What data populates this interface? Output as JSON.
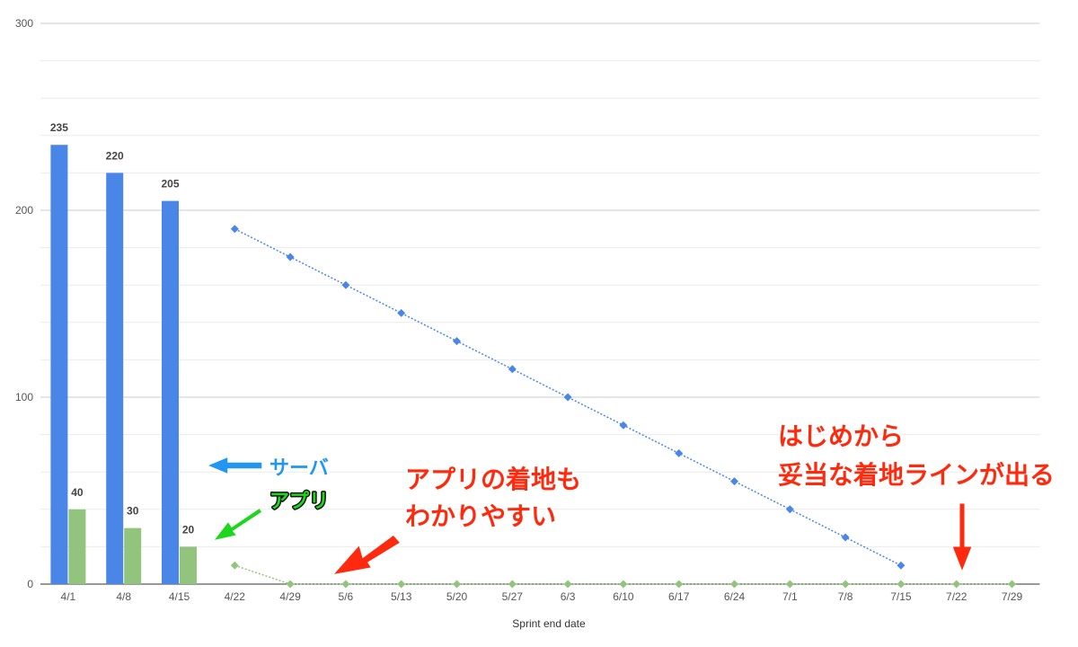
{
  "chart_data": {
    "type": "bar",
    "categories": [
      "4/1",
      "4/8",
      "4/15",
      "4/22",
      "4/29",
      "5/6",
      "5/13",
      "5/20",
      "5/27",
      "6/3",
      "6/10",
      "6/17",
      "6/24",
      "7/1",
      "7/8",
      "7/15",
      "7/22",
      "7/29"
    ],
    "xlabel": "Sprint end date",
    "ylabel": "",
    "ylim": [
      0,
      300
    ],
    "yticks": [
      0,
      100,
      200,
      300
    ],
    "grid": true,
    "bar_series": [
      {
        "values": [
          235,
          220,
          205,
          null,
          null,
          null,
          null,
          null,
          null,
          null,
          null,
          null,
          null,
          null,
          null,
          null,
          null,
          null
        ],
        "color": "#4a86e8"
      },
      {
        "values": [
          40,
          30,
          20,
          null,
          null,
          null,
          null,
          null,
          null,
          null,
          null,
          null,
          null,
          null,
          null,
          null,
          null,
          null
        ],
        "color": "#93c47d"
      }
    ],
    "line_series": [
      {
        "values": [
          null,
          null,
          null,
          190,
          175,
          160,
          145,
          130,
          115,
          100,
          85,
          70,
          55,
          40,
          25,
          10,
          null,
          null
        ],
        "color": "#4a86e8",
        "style": "dotted",
        "marker": "diamond"
      },
      {
        "values": [
          null,
          null,
          null,
          10,
          0,
          0,
          0,
          0,
          0,
          0,
          0,
          0,
          0,
          0,
          0,
          0,
          0,
          0
        ],
        "color": "#93c47d",
        "style": "dotted",
        "marker": "diamond"
      }
    ]
  },
  "annotations": {
    "server": {
      "text": "サーバ",
      "color": "#2196f3"
    },
    "app": {
      "text": "アプリ",
      "color": "#1dd61d"
    },
    "app_landing": {
      "lines": [
        "アプリの着地も",
        "わかりやすい"
      ],
      "color": "#ff2a0e"
    },
    "valid_line": {
      "lines": [
        "はじめから",
        "妥当な着地ラインが出る"
      ],
      "color": "#ff2a0e"
    }
  }
}
